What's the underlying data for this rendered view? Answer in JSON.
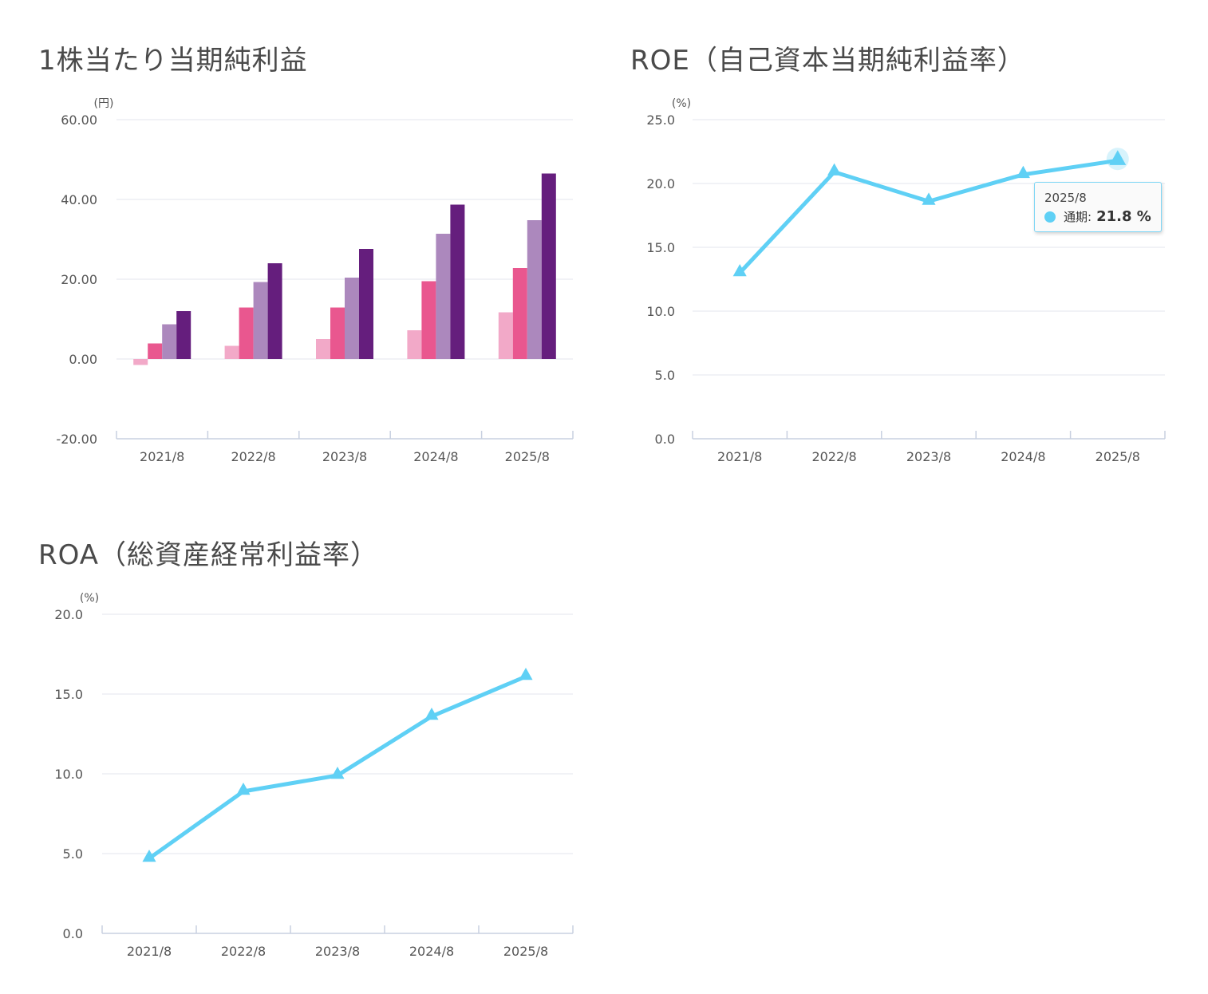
{
  "colors": {
    "eps_series": [
      "#f2a9c8",
      "#e9578f",
      "#ac88bd",
      "#651e7d"
    ],
    "line": "#5fd0f5"
  },
  "panels": {
    "eps": {
      "title": "1株当たり当期純利益"
    },
    "roe": {
      "title": "ROE（自己資本当期純利益率）"
    },
    "roa": {
      "title": "ROA（総資産経常利益率）"
    }
  },
  "tooltip": {
    "date": "2025/8",
    "series": "通期:",
    "value": "21.8 %"
  },
  "chart_data": [
    {
      "id": "eps",
      "type": "bar",
      "unit": "(円)",
      "categories": [
        "2021/8",
        "2022/8",
        "2023/8",
        "2024/8",
        "2025/8"
      ],
      "series": [
        {
          "values": [
            -1.5,
            3.3,
            5.0,
            7.2,
            11.7
          ]
        },
        {
          "values": [
            3.9,
            12.9,
            12.9,
            19.5,
            22.8
          ]
        },
        {
          "values": [
            8.7,
            19.3,
            20.4,
            31.4,
            34.8
          ]
        },
        {
          "values": [
            12.0,
            24.0,
            27.6,
            38.7,
            46.5
          ]
        }
      ],
      "ylim": [
        -20,
        60
      ],
      "yticks": [
        "60.00",
        "40.00",
        "20.00",
        "0.00",
        "-20.00"
      ],
      "grid": true
    },
    {
      "id": "roe",
      "type": "line",
      "unit": "(%)",
      "categories": [
        "2021/8",
        "2022/8",
        "2023/8",
        "2024/8",
        "2025/8"
      ],
      "series": [
        {
          "name": "通期",
          "values": [
            13.0,
            20.9,
            18.6,
            20.7,
            21.8
          ]
        }
      ],
      "ylim": [
        0,
        25
      ],
      "yticks": [
        "25.0",
        "20.0",
        "15.0",
        "10.0",
        "5.0",
        "0.0"
      ],
      "grid": true
    },
    {
      "id": "roa",
      "type": "line",
      "unit": "(%)",
      "categories": [
        "2021/8",
        "2022/8",
        "2023/8",
        "2024/8",
        "2025/8"
      ],
      "series": [
        {
          "values": [
            4.7,
            8.9,
            9.9,
            13.6,
            16.1
          ]
        }
      ],
      "ylim": [
        0,
        20
      ],
      "yticks": [
        "20.0",
        "15.0",
        "10.0",
        "5.0",
        "0.0"
      ],
      "grid": true
    }
  ]
}
